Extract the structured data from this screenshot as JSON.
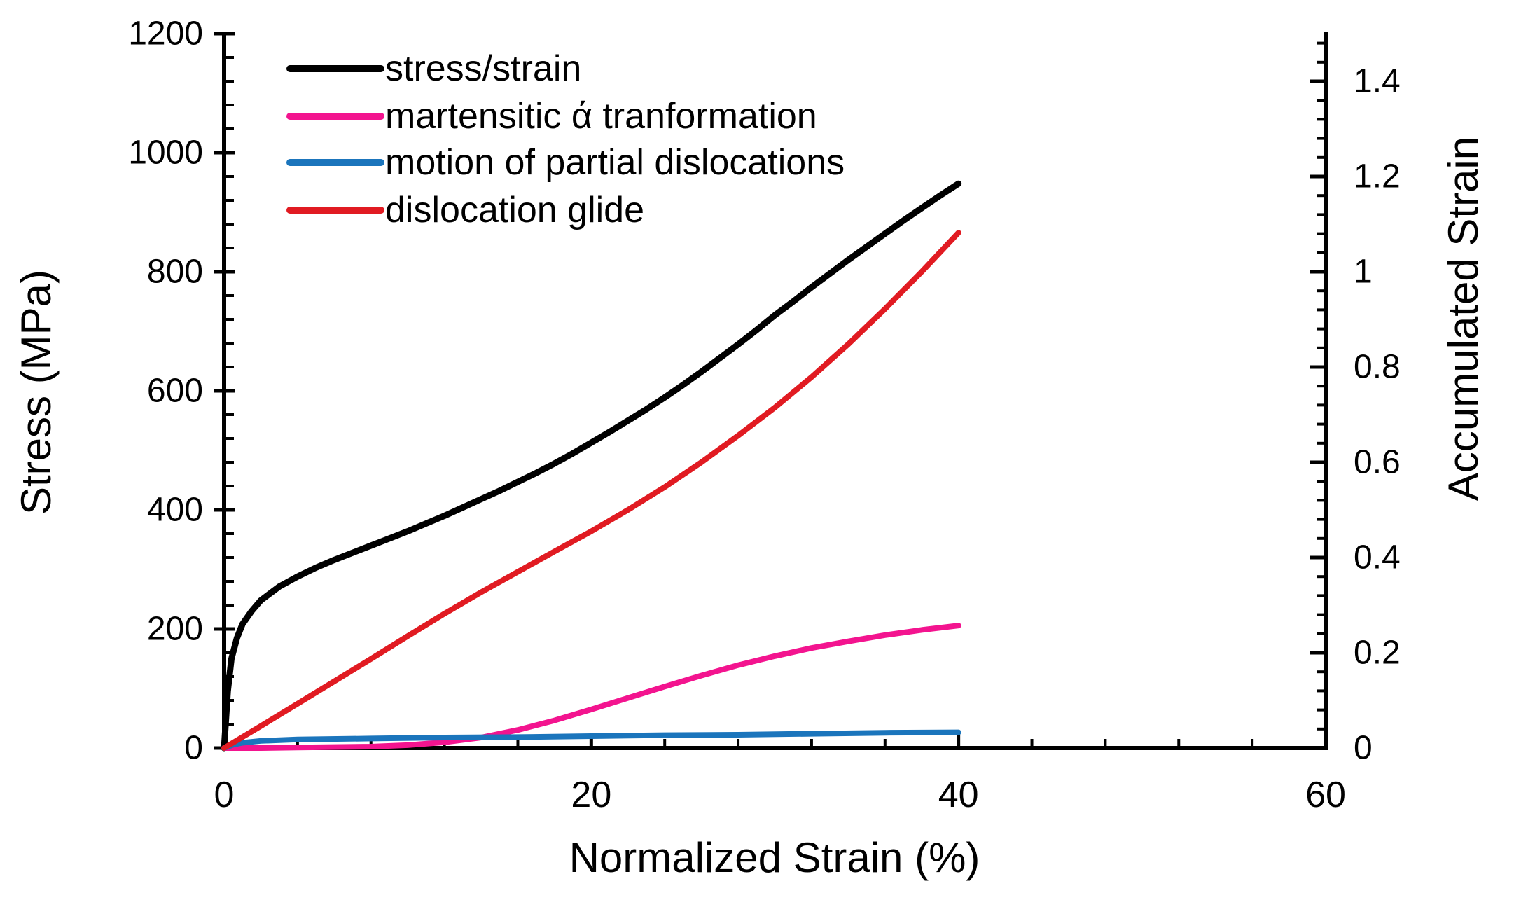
{
  "figure": {
    "background": "#FFFFFF",
    "text_color": "#000000"
  },
  "chart_data": {
    "type": "line",
    "title": "",
    "grid": false,
    "legend_position": "top-left",
    "xlabel": "Normalized Strain (%)",
    "ylabel_left": "Stress (MPa)",
    "ylabel_right": "Accumulated Strain",
    "x_range": [
      0,
      60
    ],
    "y_left_range": [
      0,
      1200
    ],
    "y_right_range": [
      0,
      1.5
    ],
    "x_axis": {
      "major_ticks": [
        0,
        20,
        40,
        60
      ],
      "tick_labels": [
        "0",
        "20",
        "40",
        "60"
      ],
      "minor_step": 4
    },
    "y_left_axis": {
      "major_ticks": [
        0,
        200,
        400,
        600,
        800,
        1000,
        1200
      ],
      "tick_labels": [
        "0",
        "200",
        "400",
        "600",
        "800",
        "1000",
        "1200"
      ],
      "minor_step": 40
    },
    "y_right_axis": {
      "major_ticks": [
        0,
        0.2,
        0.4,
        0.6,
        0.8,
        1.0,
        1.2,
        1.4
      ],
      "tick_labels": [
        "0",
        "0.2",
        "0.4",
        "0.6",
        "0.8",
        "1",
        "1.2",
        "1.4"
      ],
      "minor_step": 0.04
    },
    "series": [
      {
        "name": "stress/strain",
        "color": "#000000",
        "axis": "left",
        "stroke_width": 9,
        "points": [
          [
            0,
            0
          ],
          [
            0.2,
            95
          ],
          [
            0.4,
            150
          ],
          [
            0.7,
            185
          ],
          [
            1,
            208
          ],
          [
            1.5,
            230
          ],
          [
            2,
            248
          ],
          [
            3,
            271
          ],
          [
            4,
            288
          ],
          [
            5,
            303
          ],
          [
            6,
            316
          ],
          [
            7,
            328
          ],
          [
            8,
            340
          ],
          [
            9,
            352
          ],
          [
            10,
            364
          ],
          [
            11,
            377
          ],
          [
            12,
            390
          ],
          [
            13,
            404
          ],
          [
            14,
            418
          ],
          [
            15,
            432
          ],
          [
            16,
            447
          ],
          [
            17,
            462
          ],
          [
            18,
            478
          ],
          [
            19,
            495
          ],
          [
            20,
            513
          ],
          [
            21,
            531
          ],
          [
            22,
            550
          ],
          [
            23,
            569
          ],
          [
            24,
            589
          ],
          [
            25,
            610
          ],
          [
            26,
            632
          ],
          [
            27,
            655
          ],
          [
            28,
            678
          ],
          [
            29,
            702
          ],
          [
            30,
            727
          ],
          [
            31,
            750
          ],
          [
            32,
            774
          ],
          [
            33,
            797
          ],
          [
            34,
            820
          ],
          [
            35,
            842
          ],
          [
            36,
            864
          ],
          [
            37,
            886
          ],
          [
            38,
            907
          ],
          [
            39,
            928
          ],
          [
            40,
            948
          ]
        ]
      },
      {
        "name": "martensitic ά tranformation",
        "color": "#F3148F",
        "axis": "right",
        "stroke_width": 8,
        "points": [
          [
            0,
            0
          ],
          [
            2,
            0
          ],
          [
            4,
            0.001
          ],
          [
            6,
            0.002
          ],
          [
            8,
            0.003
          ],
          [
            10,
            0.006
          ],
          [
            12,
            0.012
          ],
          [
            14,
            0.022
          ],
          [
            16,
            0.038
          ],
          [
            18,
            0.058
          ],
          [
            20,
            0.081
          ],
          [
            22,
            0.105
          ],
          [
            24,
            0.129
          ],
          [
            26,
            0.152
          ],
          [
            28,
            0.174
          ],
          [
            30,
            0.193
          ],
          [
            32,
            0.21
          ],
          [
            34,
            0.224
          ],
          [
            36,
            0.237
          ],
          [
            38,
            0.248
          ],
          [
            40,
            0.257
          ]
        ]
      },
      {
        "name": "motion of partial dislocations",
        "color": "#1B75BC",
        "axis": "right",
        "stroke_width": 8,
        "points": [
          [
            0,
            0
          ],
          [
            0.5,
            0.007
          ],
          [
            1,
            0.011
          ],
          [
            2,
            0.015
          ],
          [
            4,
            0.018
          ],
          [
            8,
            0.02
          ],
          [
            12,
            0.022
          ],
          [
            16,
            0.023
          ],
          [
            20,
            0.025
          ],
          [
            24,
            0.027
          ],
          [
            28,
            0.028
          ],
          [
            32,
            0.03
          ],
          [
            36,
            0.032
          ],
          [
            40,
            0.033
          ]
        ]
      },
      {
        "name": "dislocation glide",
        "color": "#E11B22",
        "axis": "right",
        "stroke_width": 8,
        "points": [
          [
            0,
            0
          ],
          [
            2,
            0.046
          ],
          [
            4,
            0.093
          ],
          [
            6,
            0.14
          ],
          [
            8,
            0.187
          ],
          [
            10,
            0.235
          ],
          [
            12,
            0.282
          ],
          [
            14,
            0.327
          ],
          [
            16,
            0.37
          ],
          [
            18,
            0.413
          ],
          [
            20,
            0.455
          ],
          [
            22,
            0.5
          ],
          [
            24,
            0.548
          ],
          [
            26,
            0.6
          ],
          [
            28,
            0.656
          ],
          [
            30,
            0.715
          ],
          [
            32,
            0.779
          ],
          [
            34,
            0.848
          ],
          [
            36,
            0.922
          ],
          [
            38,
            1.0
          ],
          [
            40,
            1.082
          ]
        ]
      }
    ]
  }
}
